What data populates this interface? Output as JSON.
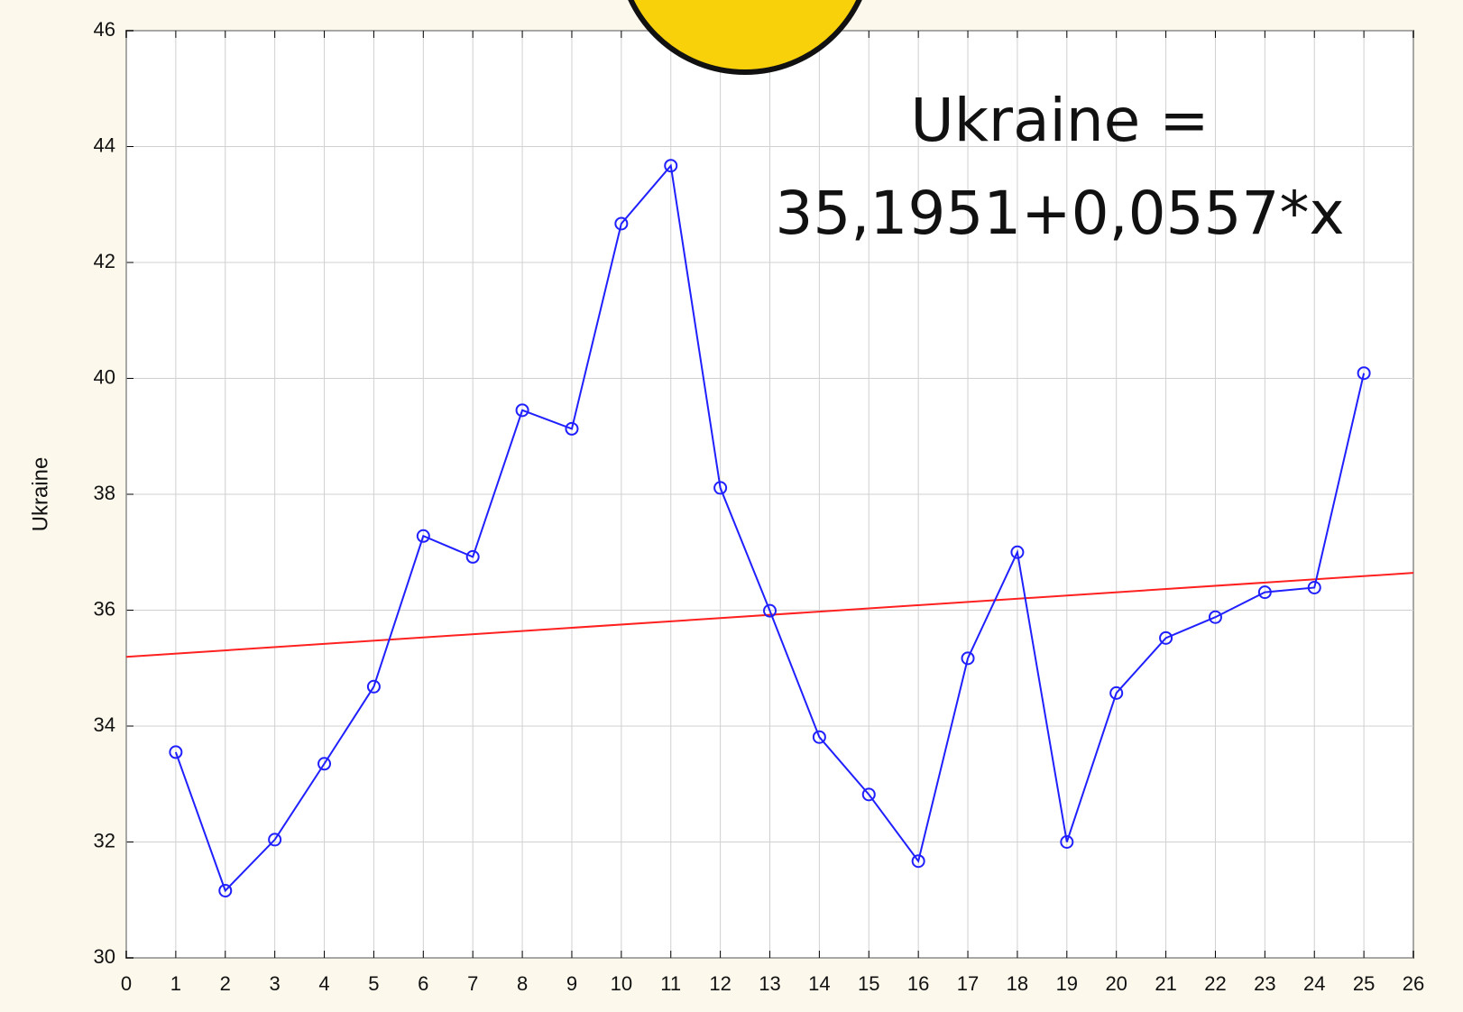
{
  "chart_data": {
    "type": "line",
    "y_label": "Ukraine",
    "annotation": [
      "Ukraine =",
      "35,1951+0,0557*x"
    ],
    "x": [
      1,
      2,
      3,
      4,
      5,
      6,
      7,
      8,
      9,
      10,
      11,
      12,
      13,
      14,
      15,
      16,
      17,
      18,
      19,
      20,
      21,
      22,
      23,
      24,
      25
    ],
    "series": [
      {
        "color": "#2020ff",
        "values": [
          33.55,
          31.16,
          32.04,
          33.35,
          34.68,
          37.28,
          36.92,
          39.45,
          39.13,
          42.67,
          43.67,
          38.11,
          35.99,
          33.81,
          32.82,
          31.67,
          35.17,
          37.0,
          32.0,
          34.57,
          35.52,
          35.88,
          36.31,
          36.39,
          40.09
        ]
      }
    ],
    "trend": {
      "x": [
        0,
        26
      ],
      "values": [
        35.1951,
        36.6433
      ],
      "color": "#ff2020"
    },
    "xlim": [
      0,
      26
    ],
    "ylim": [
      30,
      46
    ],
    "xticks": [
      0,
      1,
      2,
      3,
      4,
      5,
      6,
      7,
      8,
      9,
      10,
      11,
      12,
      13,
      14,
      15,
      16,
      17,
      18,
      19,
      20,
      21,
      22,
      23,
      24,
      25,
      26
    ],
    "yticks": [
      30,
      32,
      34,
      36,
      38,
      40,
      42,
      44,
      46
    ],
    "grid": true
  }
}
